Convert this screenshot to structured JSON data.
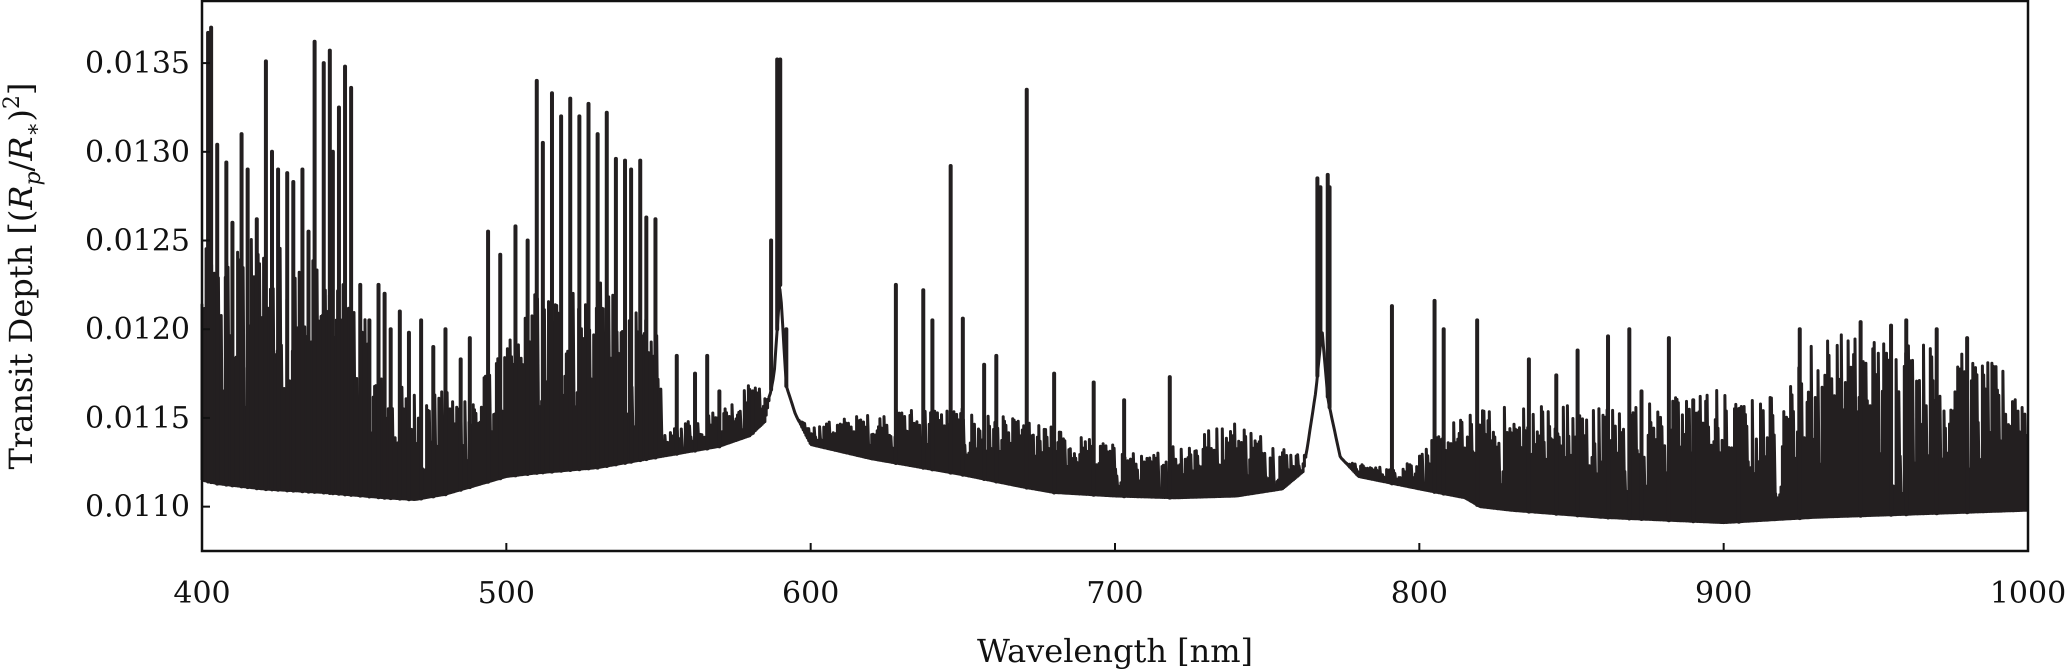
{
  "chart_data": {
    "type": "line",
    "title": "",
    "xlabel": "Wavelength [nm]",
    "ylabel": {
      "prefix": "Transit Depth [(",
      "num": "R",
      "num_sub": "p",
      "slash": "/",
      "den": "R",
      "den_sub": "∗",
      "close": ")",
      "exp": "2",
      "suffix": "]"
    },
    "xlim": [
      400,
      1000
    ],
    "ylim": [
      0.01075,
      0.01385
    ],
    "grid": false,
    "legend": "none",
    "line_color": "#231f20",
    "x_ticks": [
      400,
      500,
      600,
      700,
      800,
      900,
      1000
    ],
    "x_tick_labels": [
      "400",
      "500",
      "600",
      "700",
      "800",
      "900",
      "1000"
    ],
    "y_ticks": [
      0.011,
      0.0115,
      0.012,
      0.0125,
      0.013,
      0.0135
    ],
    "y_tick_labels": [
      "0.0110",
      "0.0115",
      "0.0120",
      "0.0125",
      "0.0130",
      "0.0135"
    ],
    "series": [
      {
        "continuum": {
          "x": [
            400,
            405,
            420,
            440,
            460,
            470,
            480,
            490,
            500,
            510,
            530,
            550,
            570,
            580,
            585,
            588,
            590,
            592,
            595,
            600,
            620,
            650,
            670,
            680,
            700,
            720,
            740,
            755,
            762,
            766,
            768,
            770,
            774,
            780,
            800,
            815,
            820,
            830,
            860,
            900,
            930,
            1000
          ],
          "y": [
            0.01115,
            0.01113,
            0.0111,
            0.01108,
            0.01105,
            0.01104,
            0.01107,
            0.01112,
            0.01117,
            0.01119,
            0.01122,
            0.01128,
            0.01134,
            0.0114,
            0.01148,
            0.01175,
            0.01225,
            0.01168,
            0.01152,
            0.01135,
            0.01127,
            0.01118,
            0.01111,
            0.01108,
            0.01106,
            0.01105,
            0.01106,
            0.0111,
            0.0112,
            0.01165,
            0.012,
            0.0116,
            0.01128,
            0.01117,
            0.0111,
            0.01105,
            0.011,
            0.01098,
            0.01094,
            0.01091,
            0.01094,
            0.01098
          ]
        },
        "forest_envelope": {
          "x": [
            400,
            410,
            420,
            440,
            450,
            460,
            480,
            490,
            500,
            510,
            530,
            550,
            552,
            560,
            570,
            580,
            585,
            595,
            600,
            610,
            640,
            660,
            680,
            700,
            710,
            720,
            740,
            760,
            780,
            790,
            800,
            810,
            820,
            840,
            860,
            880,
            895,
            905,
            920,
            930,
            945,
            960,
            990,
            1000
          ],
          "y": [
            0.01245,
            0.0125,
            0.01255,
            0.0124,
            0.01225,
            0.0117,
            0.01165,
            0.0117,
            0.0119,
            0.01225,
            0.01228,
            0.012,
            0.0114,
            0.0115,
            0.01155,
            0.0117,
            0.01165,
            0.0115,
            0.01145,
            0.0115,
            0.01158,
            0.01152,
            0.01145,
            0.01135,
            0.01128,
            0.01138,
            0.0115,
            0.0113,
            0.01124,
            0.01122,
            0.0113,
            0.01148,
            0.01155,
            0.0116,
            0.01158,
            0.0116,
            0.0117,
            0.0116,
            0.01165,
            0.012,
            0.01198,
            0.01198,
            0.0118,
            0.01175
          ]
        },
        "peaks": {
          "x": [
            402,
            403,
            405,
            408,
            410,
            413,
            415,
            418,
            421,
            423,
            425,
            428,
            430,
            433,
            435,
            437,
            440,
            442,
            443,
            445,
            447,
            449,
            452,
            455,
            458,
            460,
            462,
            465,
            468,
            472,
            476,
            480,
            485,
            488,
            494,
            498,
            503,
            507,
            510,
            512,
            515,
            518,
            521,
            524,
            527,
            530,
            533,
            536,
            539,
            541,
            544,
            546,
            549,
            556,
            562,
            566,
            570,
            581,
            587,
            589,
            589.6,
            590,
            592,
            628,
            637,
            640,
            646,
            650,
            657,
            661,
            671,
            680,
            693,
            703,
            718,
            766.5,
            767.5,
            769.9,
            770.5,
            791,
            805,
            808,
            819,
            836,
            845,
            852,
            862,
            869,
            873,
            882,
            890,
            905,
            925,
            945,
            955,
            960,
            970,
            980
          ],
          "y": [
            0.01367,
            0.0137,
            0.01304,
            0.01294,
            0.0126,
            0.0131,
            0.0129,
            0.01262,
            0.01351,
            0.013,
            0.0129,
            0.01288,
            0.01283,
            0.0129,
            0.01255,
            0.01362,
            0.0135,
            0.01357,
            0.013,
            0.01325,
            0.01348,
            0.01336,
            0.01225,
            0.01205,
            0.01225,
            0.0122,
            0.012,
            0.0121,
            0.01198,
            0.01205,
            0.0119,
            0.012,
            0.01183,
            0.01195,
            0.01255,
            0.01242,
            0.01258,
            0.0125,
            0.0134,
            0.01305,
            0.01333,
            0.0132,
            0.0133,
            0.0132,
            0.01327,
            0.0131,
            0.01322,
            0.01296,
            0.01295,
            0.0129,
            0.01295,
            0.01263,
            0.01262,
            0.01185,
            0.01175,
            0.01185,
            0.01165,
            0.01165,
            0.0125,
            0.01352,
            0.0133,
            0.01352,
            0.012,
            0.01225,
            0.01222,
            0.01205,
            0.01292,
            0.01206,
            0.0118,
            0.01185,
            0.01335,
            0.01175,
            0.0117,
            0.0116,
            0.01173,
            0.01285,
            0.0128,
            0.01287,
            0.0128,
            0.01213,
            0.01216,
            0.012,
            0.01205,
            0.01183,
            0.01174,
            0.01188,
            0.01196,
            0.012,
            0.01165,
            0.01195,
            0.0116,
            0.01155,
            0.012,
            0.01204,
            0.01202,
            0.01205,
            0.012,
            0.01195
          ]
        }
      }
    ]
  }
}
